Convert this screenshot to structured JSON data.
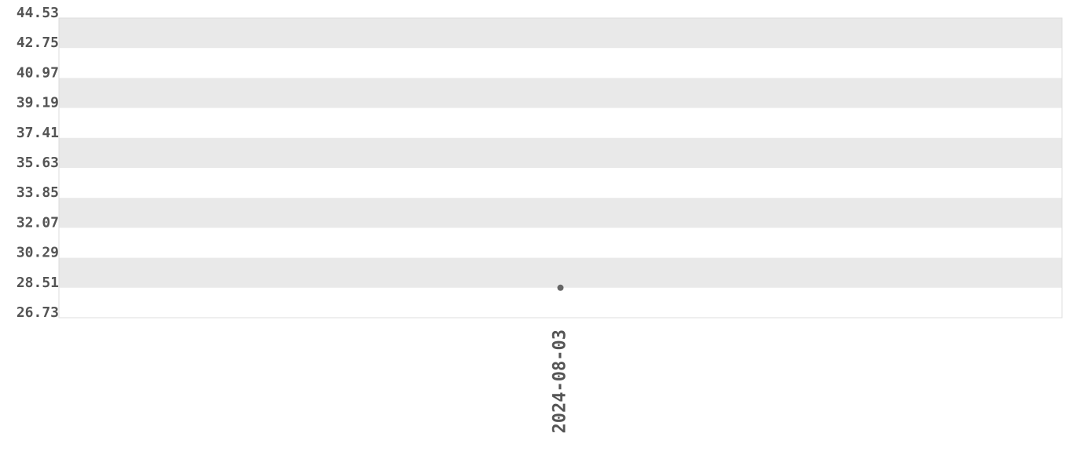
{
  "chart_data": {
    "type": "line",
    "categories": [
      "2024-08-03"
    ],
    "values": [
      28.51
    ],
    "color": "#666666",
    "ylim": [
      26.73,
      44.53
    ],
    "yticks": [
      26.73,
      28.51,
      30.29,
      32.07,
      33.85,
      35.63,
      37.41,
      39.19,
      40.97,
      42.75,
      44.53
    ],
    "grid": "bands"
  }
}
